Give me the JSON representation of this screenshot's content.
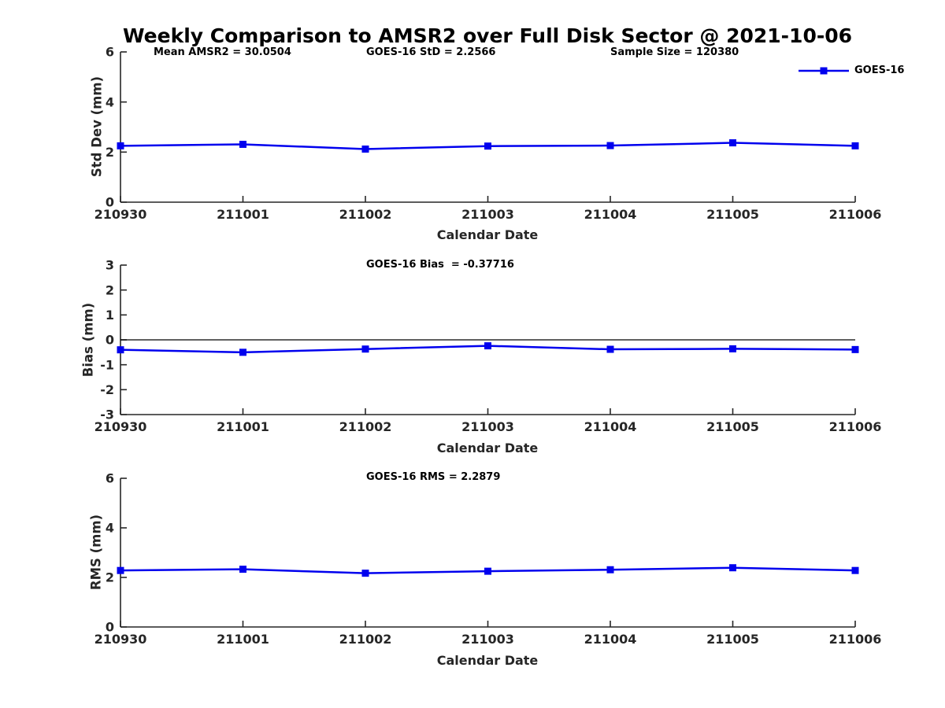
{
  "figure": {
    "title": "Weekly Comparison to AMSR2 over Full Disk Sector @ 2021-10-06",
    "background": "#ffffff"
  },
  "legend": {
    "label": "GOES-16",
    "position": "top-right-outside"
  },
  "colors": {
    "series": "#0000ee",
    "axis": "#262626",
    "tick_label": "#262626",
    "annotation": "#000000",
    "zero_line": "#000000",
    "background": "#ffffff"
  },
  "chart_data": [
    {
      "type": "line",
      "title": "",
      "xlabel": "Calendar Date",
      "ylabel": "Std Dev (mm)",
      "categories": [
        "210930",
        "211001",
        "211002",
        "211003",
        "211004",
        "211005",
        "211006"
      ],
      "series": [
        {
          "name": "GOES-16",
          "marker": "square",
          "values": [
            2.25,
            2.31,
            2.12,
            2.24,
            2.26,
            2.37,
            2.25
          ]
        }
      ],
      "ylim": [
        0,
        6
      ],
      "yticks": [
        0,
        2,
        4,
        6
      ],
      "grid": false,
      "zero_line": false,
      "legend_position": "top-right-outside",
      "annotations": [
        {
          "text": "Mean AMSR2 = 30.0504"
        },
        {
          "text": "GOES-16 StD = 2.2566"
        },
        {
          "text": "Sample Size = 120380"
        }
      ]
    },
    {
      "type": "line",
      "title": "",
      "xlabel": "Calendar Date",
      "ylabel": "Bias (mm)",
      "categories": [
        "210930",
        "211001",
        "211002",
        "211003",
        "211004",
        "211005",
        "211006"
      ],
      "series": [
        {
          "name": "GOES-16",
          "marker": "square",
          "values": [
            -0.4,
            -0.5,
            -0.37,
            -0.24,
            -0.38,
            -0.36,
            -0.39
          ]
        }
      ],
      "ylim": [
        -3,
        3
      ],
      "yticks": [
        -3,
        -2,
        -1,
        0,
        1,
        2,
        3
      ],
      "grid": false,
      "zero_line": true,
      "annotations": [
        {
          "text": "GOES-16 Bias  = -0.37716"
        }
      ]
    },
    {
      "type": "line",
      "title": "",
      "xlabel": "Calendar Date",
      "ylabel": "RMS (mm)",
      "categories": [
        "210930",
        "211001",
        "211002",
        "211003",
        "211004",
        "211005",
        "211006"
      ],
      "series": [
        {
          "name": "GOES-16",
          "marker": "square",
          "values": [
            2.28,
            2.33,
            2.17,
            2.25,
            2.31,
            2.39,
            2.28
          ]
        }
      ],
      "ylim": [
        0,
        6
      ],
      "yticks": [
        0,
        2,
        4,
        6
      ],
      "grid": false,
      "zero_line": false,
      "annotations": [
        {
          "text": "GOES-16 RMS = 2.2879"
        }
      ]
    }
  ]
}
